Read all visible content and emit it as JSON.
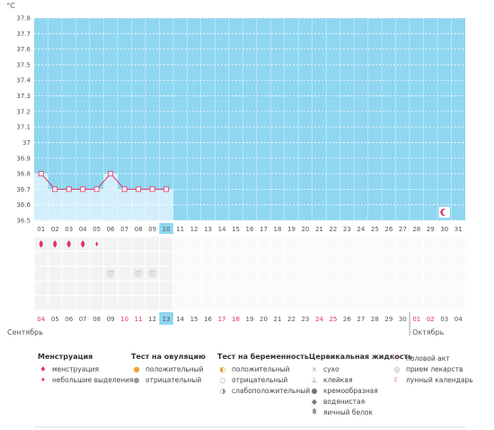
{
  "chart_data": {
    "type": "line",
    "unit_label": "°C",
    "ylim": [
      36.5,
      37.8
    ],
    "y_ticks": [
      "37.8",
      "37.7",
      "37.6",
      "37.5",
      "37.4",
      "37.3",
      "37.2",
      "37.1",
      "37",
      "36.9",
      "36.8",
      "36.7",
      "36.6",
      "36.5"
    ],
    "cycle_days": [
      "01",
      "02",
      "03",
      "04",
      "05",
      "06",
      "07",
      "08",
      "09",
      "10",
      "11",
      "12",
      "13",
      "14",
      "15",
      "16",
      "17",
      "18",
      "19",
      "20",
      "21",
      "22",
      "23",
      "24",
      "25",
      "26",
      "27",
      "28",
      "29",
      "30",
      "31"
    ],
    "current_day_index": 9,
    "temperatures": [
      36.8,
      36.7,
      36.7,
      36.7,
      36.7,
      36.8,
      36.7,
      36.7,
      36.7,
      36.7
    ],
    "series_color": "#e0306a",
    "fill_color": "#8fd6f0",
    "filled_days_color": "#d3effb",
    "marker_day": {
      "index": 29,
      "icon": "moon-icon"
    },
    "menstruation": [
      "heavy",
      "heavy",
      "heavy",
      "heavy",
      "light",
      null,
      null,
      null,
      null,
      null
    ],
    "intercourse_days": [
      5,
      7,
      8
    ],
    "dates": [
      "04",
      "05",
      "06",
      "07",
      "08",
      "09",
      "10",
      "11",
      "12",
      "13",
      "14",
      "15",
      "16",
      "17",
      "18",
      "19",
      "20",
      "21",
      "22",
      "23",
      "24",
      "25",
      "26",
      "27",
      "28",
      "29",
      "30",
      "01",
      "02",
      "03",
      "04"
    ],
    "red_date_indices": [
      0,
      6,
      7,
      13,
      14,
      20,
      21,
      27,
      28
    ],
    "today_date_index": 9,
    "month_left": "Сентябрь",
    "month_right": "Октябрь",
    "month_split_index": 27
  },
  "legend": [
    {
      "title": "Менструация",
      "items": [
        {
          "icon": "drop-heavy-icon",
          "label": "менструация"
        },
        {
          "icon": "drop-light-icon",
          "label": "небольшие выделения"
        }
      ]
    },
    {
      "title": "Тест на овуляцию",
      "items": [
        {
          "icon": "ovulation-positive-icon",
          "label": "положительный"
        },
        {
          "icon": "ovulation-negative-icon",
          "label": "отрицательный"
        }
      ]
    },
    {
      "title": "Тест на беременность",
      "items": [
        {
          "icon": "pregnancy-positive-icon",
          "label": "положительный"
        },
        {
          "icon": "pregnancy-negative-icon",
          "label": "отрицательный"
        },
        {
          "icon": "pregnancy-weak-icon",
          "label": "слабоположительный"
        }
      ]
    },
    {
      "title": "Цервикальная жидкость",
      "items": [
        {
          "icon": "dry-icon",
          "label": "сухо"
        },
        {
          "icon": "sticky-icon",
          "label": "клейкая"
        },
        {
          "icon": "creamy-icon",
          "label": "кремообразная"
        },
        {
          "icon": "watery-icon",
          "label": "водянистая"
        },
        {
          "icon": "eggwhite-icon",
          "label": "яичный белок"
        }
      ]
    },
    {
      "title": "",
      "items": [
        {
          "icon": "heart-icon",
          "label": "половой акт"
        },
        {
          "icon": "pill-icon",
          "label": "прием лекарств"
        },
        {
          "icon": "moon-icon",
          "label": "лунный календарь"
        }
      ]
    }
  ]
}
